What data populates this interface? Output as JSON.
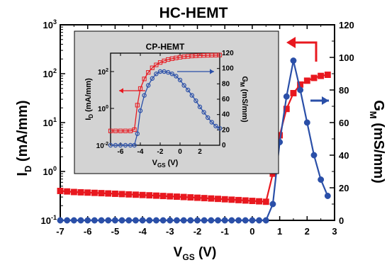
{
  "colors": {
    "id_series": "#e8181f",
    "gm_series": "#2a4fa8",
    "inset_background": "#d3d3d3",
    "frame": "#000000"
  },
  "chart_data": [
    {
      "type": "line",
      "title": "HC-HEMT",
      "x_label": {
        "main": "V",
        "sub": "GS",
        "unit": " (V)"
      },
      "y_left_label": {
        "main": "I",
        "sub": "D",
        "unit": " (mA/mm)"
      },
      "y_right_label": {
        "main": "G",
        "sub": "M",
        "unit": " (mS/mm)"
      },
      "x_range": [
        -7,
        3
      ],
      "x_ticks": [
        -7,
        -6,
        -5,
        -4,
        -3,
        -2,
        -1,
        0,
        1,
        2,
        3
      ],
      "x_tick_labels": [
        "-7",
        "-6",
        "-5",
        "-4",
        "-3",
        "-2",
        "-1",
        "0",
        "1",
        "2",
        "3"
      ],
      "y_left_scale": "log",
      "y_left_range": [
        0.1,
        1000
      ],
      "y_left_tick_labels": [
        {
          "base": "10",
          "exp": "-1",
          "value": 0.1
        },
        {
          "base": "10",
          "exp": "0",
          "value": 1
        },
        {
          "base": "10",
          "exp": "1",
          "value": 10
        },
        {
          "base": "10",
          "exp": "2",
          "value": 100
        },
        {
          "base": "10",
          "exp": "3",
          "value": 1000
        }
      ],
      "y_right_range": [
        0,
        120
      ],
      "y_right_ticks": [
        0,
        20,
        40,
        60,
        80,
        100,
        120
      ],
      "y_right_tick_labels": [
        "0",
        "20",
        "40",
        "60",
        "80",
        "100",
        "120"
      ],
      "series": [
        {
          "axis": "left",
          "marker": "square-filled",
          "color": "#e8181f",
          "x": [
            -7,
            -6.75,
            -6.5,
            -6.25,
            -6,
            -5.75,
            -5.5,
            -5.25,
            -5,
            -4.75,
            -4.5,
            -4.25,
            -4,
            -3.75,
            -3.5,
            -3.25,
            -3,
            -2.75,
            -2.5,
            -2.25,
            -2,
            -1.75,
            -1.5,
            -1.25,
            -1,
            -0.75,
            -0.5,
            -0.25,
            0,
            0.25,
            0.5,
            0.75,
            1.0,
            1.25,
            1.5,
            1.75,
            2.0,
            2.25,
            2.5,
            2.75
          ],
          "y": [
            0.4,
            0.39,
            0.38,
            0.375,
            0.37,
            0.365,
            0.36,
            0.355,
            0.35,
            0.345,
            0.34,
            0.335,
            0.33,
            0.325,
            0.32,
            0.315,
            0.31,
            0.305,
            0.3,
            0.295,
            0.29,
            0.285,
            0.28,
            0.275,
            0.27,
            0.265,
            0.26,
            0.255,
            0.25,
            0.245,
            0.24,
            0.9,
            5.5,
            19,
            40,
            60,
            72,
            82,
            90,
            95
          ]
        },
        {
          "axis": "right",
          "marker": "circle-filled",
          "color": "#2a4fa8",
          "x": [
            -7,
            -6.75,
            -6.5,
            -6.25,
            -6,
            -5.75,
            -5.5,
            -5.25,
            -5,
            -4.75,
            -4.5,
            -4.25,
            -4,
            -3.75,
            -3.5,
            -3.25,
            -3,
            -2.75,
            -2.5,
            -2.25,
            -2,
            -1.75,
            -1.5,
            -1.25,
            -1,
            -0.75,
            -0.5,
            -0.25,
            0,
            0.25,
            0.5,
            0.75,
            1.0,
            1.25,
            1.5,
            1.75,
            2.0,
            2.25,
            2.5,
            2.75
          ],
          "y": [
            0,
            0,
            0,
            0,
            0,
            0,
            0,
            0,
            0,
            0,
            0,
            0,
            0,
            0,
            0,
            0,
            0,
            0,
            0,
            0,
            0,
            0,
            0,
            0,
            0,
            0,
            0,
            0,
            0,
            0,
            0,
            10,
            48,
            76,
            98,
            80,
            60,
            40,
            25,
            15
          ]
        }
      ],
      "annotations": [
        {
          "type": "arrow",
          "direction": "left",
          "color": "#e8181f",
          "refers_to": "left-axis"
        },
        {
          "type": "arrow",
          "direction": "right",
          "color": "#2a4fa8",
          "refers_to": "right-axis"
        }
      ],
      "grid": false,
      "legend": "none"
    },
    {
      "type": "line",
      "placement": "inset-top-left",
      "title": "CP-HEMT",
      "x_label": {
        "main": "V",
        "sub": "GS",
        "unit": " (V)"
      },
      "y_left_label": {
        "main": "I",
        "sub": "D",
        "unit": " (mA/mm)"
      },
      "y_right_label": {
        "main": "G",
        "sub": "M",
        "unit": " (mS/mm)"
      },
      "x_range": [
        -7,
        4
      ],
      "x_ticks": [
        -6,
        -4,
        -2,
        0,
        2
      ],
      "x_tick_labels": [
        "-6",
        "-4",
        "-2",
        "0",
        "2"
      ],
      "y_left_scale": "log",
      "y_left_range": [
        0.01,
        1000
      ],
      "y_left_tick_labels": [
        {
          "base": "10",
          "exp": "-2",
          "value": 0.01
        },
        {
          "base": "10",
          "exp": "0",
          "value": 1
        },
        {
          "base": "10",
          "exp": "2",
          "value": 100
        }
      ],
      "y_right_range": [
        0,
        120
      ],
      "y_right_ticks": [
        0,
        20,
        40,
        60,
        80,
        100,
        120
      ],
      "y_right_tick_labels": [
        "0",
        "20",
        "40",
        "60",
        "80",
        "100",
        "120"
      ],
      "series": [
        {
          "axis": "left",
          "marker": "square-open",
          "color": "#e8181f",
          "x": [
            -7,
            -6.5,
            -6,
            -5.5,
            -5,
            -4.6,
            -4.3,
            -4.0,
            -3.6,
            -3.2,
            -2.8,
            -2.4,
            -2.0,
            -1.6,
            -1.2,
            -0.8,
            -0.4,
            0,
            0.4,
            0.8,
            1.2,
            1.6,
            2.0,
            2.4,
            2.8,
            3.2,
            3.6,
            4.0
          ],
          "y": [
            0.06,
            0.06,
            0.06,
            0.06,
            0.06,
            0.07,
            1.5,
            12,
            40,
            90,
            160,
            230,
            310,
            380,
            450,
            500,
            550,
            600,
            640,
            670,
            700,
            720,
            740,
            755,
            765,
            775,
            780,
            790
          ]
        },
        {
          "axis": "right",
          "marker": "circle-open",
          "color": "#2a4fa8",
          "x": [
            -7,
            -6.5,
            -6,
            -5.5,
            -5,
            -4.6,
            -4.3,
            -4.0,
            -3.6,
            -3.2,
            -2.8,
            -2.4,
            -2.0,
            -1.6,
            -1.2,
            -0.8,
            -0.4,
            0,
            0.4,
            0.8,
            1.2,
            1.6,
            2.0,
            2.4,
            2.8,
            3.2,
            3.6,
            4.0
          ],
          "y": [
            0,
            0,
            0,
            0,
            0,
            0,
            15,
            45,
            65,
            78,
            87,
            93,
            96,
            96,
            95,
            93,
            90,
            85,
            78,
            72,
            65,
            58,
            50,
            43,
            36,
            30,
            25,
            22
          ]
        }
      ],
      "annotations": [
        {
          "type": "arrow",
          "direction": "left",
          "color": "#e8181f",
          "refers_to": "left-axis"
        },
        {
          "type": "arrow",
          "direction": "right",
          "color": "#2a4fa8",
          "refers_to": "right-axis"
        }
      ],
      "grid": false,
      "legend": "none"
    }
  ]
}
